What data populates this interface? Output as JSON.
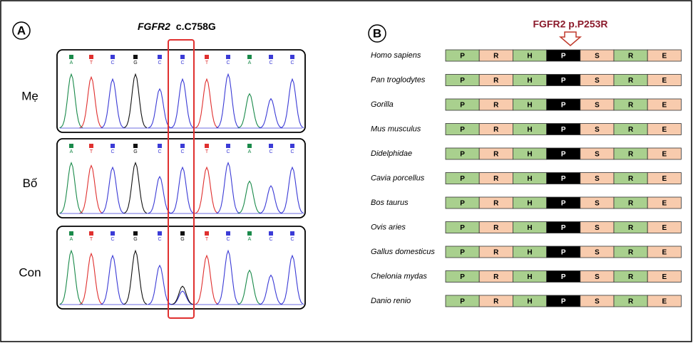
{
  "panel_a": {
    "label": "A",
    "title_gene": "FGFR2",
    "title_variant": "c.C758G",
    "rows": [
      {
        "name": "Mẹ",
        "bases": [
          "A",
          "T",
          "C",
          "G",
          "C",
          "C",
          "T",
          "C",
          "A",
          "C",
          "C"
        ]
      },
      {
        "name": "Bố",
        "bases": [
          "A",
          "T",
          "C",
          "G",
          "C",
          "C",
          "T",
          "C",
          "A",
          "C",
          "C"
        ]
      },
      {
        "name": "Con",
        "bases": [
          "A",
          "T",
          "C",
          "G",
          "C",
          "G",
          "T",
          "C",
          "A",
          "C",
          "C"
        ]
      }
    ]
  },
  "panel_b": {
    "label": "B",
    "title": "FGFR2 p.P253R",
    "species": [
      {
        "name": "Homo sapiens",
        "residues": [
          "P",
          "R",
          "H",
          "P",
          "S",
          "R",
          "E"
        ]
      },
      {
        "name": "Pan troglodytes",
        "residues": [
          "P",
          "R",
          "H",
          "P",
          "S",
          "R",
          "E"
        ]
      },
      {
        "name": "Gorilla",
        "residues": [
          "P",
          "R",
          "H",
          "P",
          "S",
          "R",
          "E"
        ]
      },
      {
        "name": "Mus musculus",
        "residues": [
          "P",
          "R",
          "H",
          "P",
          "S",
          "R",
          "E"
        ]
      },
      {
        "name": "Didelphidae",
        "residues": [
          "P",
          "R",
          "H",
          "P",
          "S",
          "R",
          "E"
        ]
      },
      {
        "name": "Cavia porcellus",
        "residues": [
          "P",
          "R",
          "H",
          "P",
          "S",
          "R",
          "E"
        ]
      },
      {
        "name": "Bos taurus",
        "residues": [
          "P",
          "R",
          "H",
          "P",
          "S",
          "R",
          "E"
        ]
      },
      {
        "name": "Ovis aries",
        "residues": [
          "P",
          "R",
          "H",
          "P",
          "S",
          "R",
          "E"
        ]
      },
      {
        "name": "Gallus domesticus",
        "residues": [
          "P",
          "R",
          "H",
          "P",
          "S",
          "R",
          "E"
        ]
      },
      {
        "name": "Chelonia mydas",
        "residues": [
          "P",
          "R",
          "H",
          "P",
          "S",
          "R",
          "E"
        ]
      },
      {
        "name": "Danio renio",
        "residues": [
          "P",
          "R",
          "H",
          "P",
          "S",
          "R",
          "E"
        ]
      }
    ]
  }
}
